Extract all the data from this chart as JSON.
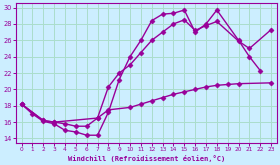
{
  "bg_color": "#cceeff",
  "line_color": "#990099",
  "grid_color": "#aaddcc",
  "xlabel": "Windchill (Refroidissement éolien,°C)",
  "xlabel_color": "#990099",
  "xlim": [
    -0.5,
    23.5
  ],
  "ylim": [
    13.5,
    30.5
  ],
  "xticks": [
    0,
    1,
    2,
    3,
    4,
    5,
    6,
    7,
    8,
    9,
    10,
    11,
    12,
    13,
    14,
    15,
    16,
    17,
    18,
    19,
    20,
    21,
    22,
    23
  ],
  "yticks": [
    14,
    16,
    18,
    20,
    22,
    24,
    26,
    28,
    30
  ],
  "curve1_x": [
    0,
    1,
    2,
    3,
    4,
    5,
    6,
    7,
    8,
    9,
    10,
    11,
    12,
    13,
    14,
    15,
    16,
    17,
    18,
    20,
    21,
    22
  ],
  "curve1_y": [
    18.2,
    17.0,
    16.1,
    15.8,
    15.0,
    14.8,
    14.4,
    14.4,
    17.2,
    21.2,
    24.0,
    26.0,
    28.4,
    29.2,
    29.3,
    29.7,
    27.0,
    28.0,
    29.7,
    26.0,
    24.0,
    22.3
  ],
  "curve2_x": [
    0,
    2,
    3,
    7,
    8,
    9,
    10,
    11,
    12,
    13,
    14,
    15,
    16,
    17,
    18,
    20,
    21,
    23
  ],
  "curve2_y": [
    18.2,
    16.2,
    16.0,
    16.5,
    20.3,
    22.0,
    23.0,
    24.5,
    26.0,
    27.0,
    28.0,
    28.5,
    27.2,
    27.8,
    28.3,
    25.9,
    25.0,
    27.3
  ],
  "curve3_x": [
    0,
    2,
    3,
    4,
    5,
    6,
    7,
    8,
    10,
    11,
    12,
    13,
    14,
    15,
    16,
    17,
    18,
    19,
    20,
    23
  ],
  "curve3_y": [
    18.2,
    16.2,
    16.0,
    15.8,
    15.5,
    15.5,
    16.5,
    17.5,
    17.8,
    18.2,
    18.6,
    19.0,
    19.4,
    19.7,
    20.0,
    20.3,
    20.5,
    20.6,
    20.7,
    20.8
  ],
  "marker": "D",
  "markersize": 2.5,
  "linewidth": 1.0
}
